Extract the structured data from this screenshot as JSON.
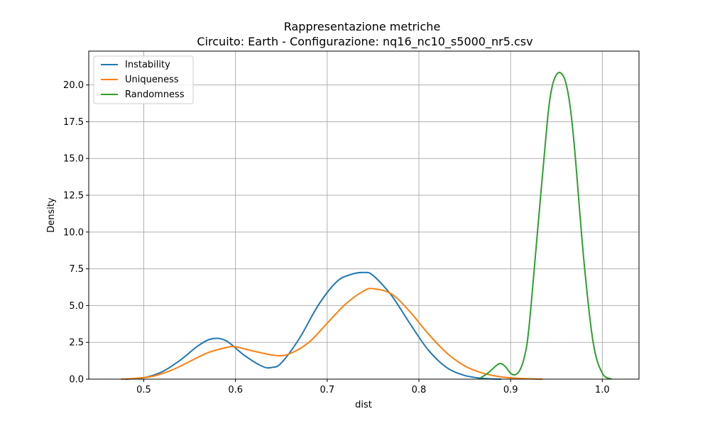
{
  "chart_data": {
    "type": "line",
    "title": "Rappresentazione metriche",
    "subtitle": "Circuito: Earth - Configurazione: nq16_nc10_s5000_nr5.csv",
    "xlabel": "dist",
    "ylabel": "Density",
    "xlim": [
      0.44,
      1.04
    ],
    "ylim": [
      0,
      22.3
    ],
    "xticks": [
      "0.5",
      "0.6",
      "0.7",
      "0.8",
      "0.9",
      "1.0"
    ],
    "yticks": [
      "0.0",
      "2.5",
      "5.0",
      "7.5",
      "10.0",
      "12.5",
      "15.0",
      "17.5",
      "20.0"
    ],
    "grid": true,
    "legend_position": "top-left",
    "series": [
      {
        "name": "Instability",
        "color": "#1f77b4",
        "x": [
          0.48,
          0.5,
          0.52,
          0.54,
          0.56,
          0.575,
          0.59,
          0.61,
          0.63,
          0.64,
          0.65,
          0.67,
          0.69,
          0.71,
          0.725,
          0.74,
          0.75,
          0.77,
          0.79,
          0.81,
          0.83,
          0.85,
          0.87,
          0.89
        ],
        "y": [
          0.0,
          0.1,
          0.5,
          1.3,
          2.3,
          2.75,
          2.6,
          1.6,
          0.85,
          0.8,
          1.1,
          2.8,
          5.0,
          6.6,
          7.1,
          7.25,
          7.05,
          5.7,
          3.8,
          2.0,
          0.8,
          0.25,
          0.05,
          0.0
        ]
      },
      {
        "name": "Uniqueness",
        "color": "#ff7f0e",
        "x": [
          0.475,
          0.49,
          0.51,
          0.53,
          0.55,
          0.57,
          0.59,
          0.6,
          0.62,
          0.645,
          0.66,
          0.68,
          0.7,
          0.72,
          0.74,
          0.75,
          0.77,
          0.79,
          0.81,
          0.83,
          0.85,
          0.87,
          0.89,
          0.91,
          0.935
        ],
        "y": [
          0.0,
          0.05,
          0.2,
          0.6,
          1.2,
          1.8,
          2.15,
          2.2,
          1.9,
          1.6,
          1.75,
          2.5,
          3.8,
          5.1,
          6.0,
          6.15,
          5.8,
          4.6,
          3.1,
          1.8,
          0.9,
          0.4,
          0.15,
          0.05,
          0.0
        ]
      },
      {
        "name": "Randomness",
        "color": "#2ca02c",
        "x": [
          0.865,
          0.875,
          0.885,
          0.89,
          0.895,
          0.9,
          0.905,
          0.91,
          0.915,
          0.92,
          0.93,
          0.94,
          0.945,
          0.95,
          0.955,
          0.96,
          0.965,
          0.97,
          0.98,
          0.99,
          1.0,
          1.01
        ],
        "y": [
          0.0,
          0.4,
          0.95,
          1.05,
          0.8,
          0.4,
          0.3,
          0.6,
          1.5,
          3.5,
          10.5,
          17.5,
          19.8,
          20.7,
          20.8,
          20.2,
          18.5,
          15.5,
          8.0,
          2.5,
          0.4,
          0.0
        ]
      }
    ]
  }
}
